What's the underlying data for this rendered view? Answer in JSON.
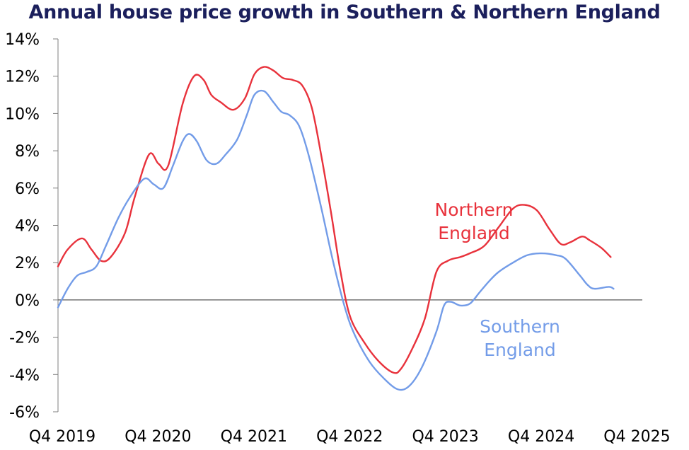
{
  "chart_data": {
    "type": "line",
    "title": "Annual house price growth in Southern & Northern England",
    "xlabel": "",
    "ylabel": "",
    "ylim": [
      -6,
      14
    ],
    "y_ticks": [
      {
        "value": 14,
        "label": "14%"
      },
      {
        "value": 12,
        "label": "12%"
      },
      {
        "value": 10,
        "label": "10%"
      },
      {
        "value": 8,
        "label": "8%"
      },
      {
        "value": 6,
        "label": "6%"
      },
      {
        "value": 4,
        "label": "4%"
      },
      {
        "value": 2,
        "label": "2%"
      },
      {
        "value": 0,
        "label": "0%"
      },
      {
        "value": -2,
        "label": "-2%"
      },
      {
        "value": -4,
        "label": "-4%"
      },
      {
        "value": -6,
        "label": "-6%"
      }
    ],
    "x_ticks": [
      {
        "value": 2019.75,
        "label": "Q4 2019"
      },
      {
        "value": 2020.75,
        "label": "Q4 2020"
      },
      {
        "value": 2021.75,
        "label": "Q4 2021"
      },
      {
        "value": 2022.75,
        "label": "Q4 2022"
      },
      {
        "value": 2023.75,
        "label": "Q4 2023"
      },
      {
        "value": 2024.75,
        "label": "Q4 2024"
      },
      {
        "value": 2025.75,
        "label": "Q4 2025"
      }
    ],
    "xlim": [
      2019.75,
      2025.85
    ],
    "grid": false,
    "legend": "direct labels",
    "series": [
      {
        "name": "Northern England",
        "color": "#e8323c",
        "label_lines": [
          "Northern",
          "England"
        ],
        "points": [
          [
            2019.75,
            1.8
          ],
          [
            2019.85,
            2.7
          ],
          [
            2020.0,
            3.3
          ],
          [
            2020.1,
            2.7
          ],
          [
            2020.2,
            2.1
          ],
          [
            2020.3,
            2.3
          ],
          [
            2020.45,
            3.6
          ],
          [
            2020.55,
            5.5
          ],
          [
            2020.7,
            7.8
          ],
          [
            2020.8,
            7.3
          ],
          [
            2020.9,
            7.2
          ],
          [
            2021.05,
            10.5
          ],
          [
            2021.17,
            12.0
          ],
          [
            2021.27,
            11.8
          ],
          [
            2021.35,
            11.0
          ],
          [
            2021.45,
            10.6
          ],
          [
            2021.58,
            10.2
          ],
          [
            2021.7,
            10.8
          ],
          [
            2021.8,
            12.1
          ],
          [
            2021.9,
            12.5
          ],
          [
            2022.0,
            12.3
          ],
          [
            2022.1,
            11.9
          ],
          [
            2022.2,
            11.8
          ],
          [
            2022.3,
            11.5
          ],
          [
            2022.4,
            10.3
          ],
          [
            2022.5,
            7.7
          ],
          [
            2022.6,
            4.7
          ],
          [
            2022.7,
            1.5
          ],
          [
            2022.8,
            -0.9
          ],
          [
            2022.95,
            -2.3
          ],
          [
            2023.1,
            -3.3
          ],
          [
            2023.25,
            -3.9
          ],
          [
            2023.33,
            -3.7
          ],
          [
            2023.45,
            -2.6
          ],
          [
            2023.58,
            -1.0
          ],
          [
            2023.7,
            1.5
          ],
          [
            2023.82,
            2.1
          ],
          [
            2023.95,
            2.3
          ],
          [
            2024.05,
            2.5
          ],
          [
            2024.2,
            2.9
          ],
          [
            2024.35,
            3.9
          ],
          [
            2024.5,
            4.9
          ],
          [
            2024.62,
            5.1
          ],
          [
            2024.75,
            4.8
          ],
          [
            2024.88,
            3.8
          ],
          [
            2025.0,
            3.0
          ],
          [
            2025.1,
            3.1
          ],
          [
            2025.22,
            3.4
          ],
          [
            2025.3,
            3.2
          ],
          [
            2025.42,
            2.8
          ],
          [
            2025.52,
            2.3
          ]
        ]
      },
      {
        "name": "Southern England",
        "color": "#739ce8",
        "label_lines": [
          "Southern",
          "England"
        ],
        "points": [
          [
            2019.75,
            -0.4
          ],
          [
            2019.85,
            0.6
          ],
          [
            2019.95,
            1.3
          ],
          [
            2020.05,
            1.5
          ],
          [
            2020.15,
            1.8
          ],
          [
            2020.25,
            2.9
          ],
          [
            2020.38,
            4.4
          ],
          [
            2020.5,
            5.5
          ],
          [
            2020.65,
            6.5
          ],
          [
            2020.75,
            6.2
          ],
          [
            2020.85,
            6.0
          ],
          [
            2020.95,
            7.2
          ],
          [
            2021.05,
            8.5
          ],
          [
            2021.12,
            8.9
          ],
          [
            2021.2,
            8.5
          ],
          [
            2021.3,
            7.5
          ],
          [
            2021.4,
            7.3
          ],
          [
            2021.5,
            7.8
          ],
          [
            2021.62,
            8.6
          ],
          [
            2021.72,
            9.9
          ],
          [
            2021.8,
            11.0
          ],
          [
            2021.9,
            11.2
          ],
          [
            2022.0,
            10.6
          ],
          [
            2022.08,
            10.1
          ],
          [
            2022.17,
            9.9
          ],
          [
            2022.27,
            9.3
          ],
          [
            2022.37,
            7.7
          ],
          [
            2022.5,
            4.9
          ],
          [
            2022.62,
            2.1
          ],
          [
            2022.75,
            -0.5
          ],
          [
            2022.85,
            -1.9
          ],
          [
            2023.0,
            -3.3
          ],
          [
            2023.15,
            -4.2
          ],
          [
            2023.3,
            -4.8
          ],
          [
            2023.42,
            -4.6
          ],
          [
            2023.55,
            -3.6
          ],
          [
            2023.7,
            -1.7
          ],
          [
            2023.78,
            -0.3
          ],
          [
            2023.85,
            -0.1
          ],
          [
            2023.95,
            -0.3
          ],
          [
            2024.05,
            -0.2
          ],
          [
            2024.15,
            0.4
          ],
          [
            2024.25,
            1.0
          ],
          [
            2024.35,
            1.5
          ],
          [
            2024.5,
            2.0
          ],
          [
            2024.65,
            2.4
          ],
          [
            2024.8,
            2.5
          ],
          [
            2024.95,
            2.4
          ],
          [
            2025.05,
            2.2
          ],
          [
            2025.2,
            1.3
          ],
          [
            2025.28,
            0.8
          ],
          [
            2025.35,
            0.6
          ],
          [
            2025.5,
            0.7
          ],
          [
            2025.55,
            0.6
          ]
        ]
      }
    ]
  }
}
